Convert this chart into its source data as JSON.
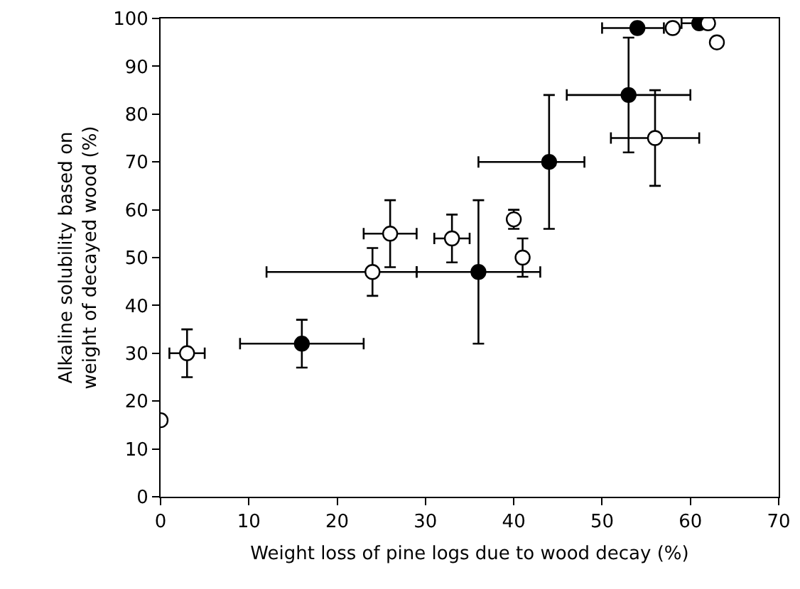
{
  "chart_data": {
    "type": "scatter",
    "xlabel": "Weight loss of pine logs due to wood decay (%)",
    "ylabel": "Alkaline solubility based on\nweight of decayed wood (%)",
    "xlim": [
      0,
      70
    ],
    "xticks": [
      0,
      10,
      20,
      30,
      40,
      50,
      60,
      70
    ],
    "ylim": [
      0,
      100
    ],
    "yticks": [
      0,
      10,
      20,
      30,
      40,
      50,
      60,
      70,
      80,
      90,
      100
    ],
    "grid": false,
    "marker": "circle",
    "series": [
      {
        "color": "#000000",
        "x": [
          16,
          36,
          44,
          53,
          54,
          61
        ],
        "values": [
          32,
          47,
          70,
          84,
          98,
          99
        ],
        "errors": [
          [
            27,
            37
          ],
          [
            32,
            62
          ],
          [
            56,
            84
          ],
          [
            72,
            96
          ],
          null,
          null
        ],
        "xerrors": [
          [
            9,
            23
          ],
          [
            29,
            43
          ],
          [
            36,
            48
          ],
          [
            46,
            60
          ],
          [
            50,
            57
          ],
          [
            59,
            62
          ]
        ]
      },
      {
        "color": "#ffffff",
        "x": [
          0,
          3,
          24,
          26,
          33,
          40,
          41,
          56,
          58,
          62,
          63
        ],
        "values": [
          16,
          30,
          47,
          55,
          54,
          58,
          50,
          75,
          98,
          99,
          95
        ],
        "errors": [
          null,
          [
            25,
            35
          ],
          [
            42,
            52
          ],
          [
            48,
            62
          ],
          [
            49,
            59
          ],
          [
            56,
            60
          ],
          [
            46,
            54
          ],
          [
            65,
            85
          ],
          null,
          null,
          null
        ],
        "xerrors": [
          null,
          [
            1,
            5
          ],
          [
            12,
            29
          ],
          [
            23,
            29
          ],
          [
            31,
            35
          ],
          null,
          null,
          [
            51,
            61
          ],
          null,
          null,
          null
        ]
      }
    ]
  }
}
